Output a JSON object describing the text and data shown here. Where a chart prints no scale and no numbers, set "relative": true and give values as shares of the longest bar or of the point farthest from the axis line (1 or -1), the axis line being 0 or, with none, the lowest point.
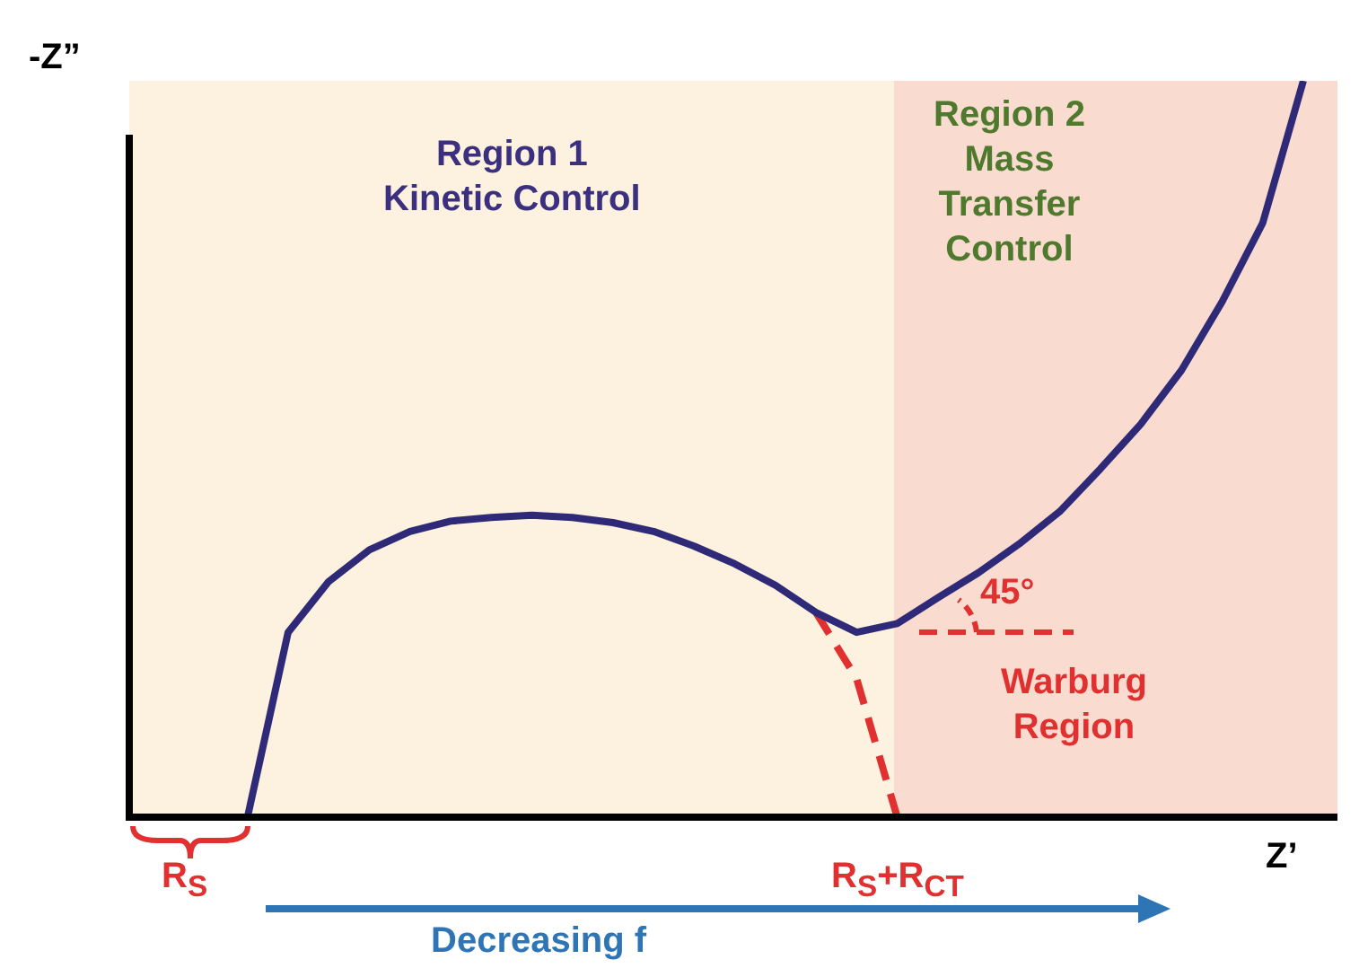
{
  "chart_data": {
    "type": "line",
    "relative": true,
    "legend": false,
    "marker": "none",
    "ylabel": "-Z”",
    "xlabel": "Z’",
    "categories": [
      null,
      null,
      null,
      null,
      null,
      null,
      null,
      null,
      null,
      null,
      null,
      null,
      null,
      null,
      null,
      null,
      null,
      null,
      null,
      null,
      null,
      null,
      null,
      null,
      null,
      null,
      null,
      null,
      null,
      null
    ],
    "series": [
      {
        "color": "#2e2a78",
        "line_style": "solid",
        "values": [
          null,
          null,
          null,
          0,
          0.251,
          0.32,
          0.363,
          0.388,
          0.402,
          0.407,
          0.41,
          0.407,
          0.4,
          0.388,
          0.368,
          0.344,
          0.315,
          0.278,
          0.251,
          0.263,
          0.298,
          0.332,
          0.371,
          0.415,
          0.473,
          0.534,
          0.607,
          0.7,
          0.807,
          1
        ]
      },
      {
        "color": "#e03030",
        "line_style": "dashed",
        "values": [
          null,
          null,
          null,
          null,
          null,
          null,
          null,
          null,
          null,
          null,
          null,
          null,
          null,
          null,
          null,
          null,
          null,
          0.278,
          0.188,
          0,
          null,
          null,
          null,
          null,
          null,
          null,
          null,
          null,
          null,
          null
        ]
      }
    ],
    "annotations": [
      "Region 1\nKinetic Control",
      "Region 2\nMass\nTransfer\nControl",
      "45°",
      "Warburg\nRegion",
      "R$_{S}$",
      "R$_{S}$+R$_{CT}$",
      "Decreasing f"
    ]
  }
}
